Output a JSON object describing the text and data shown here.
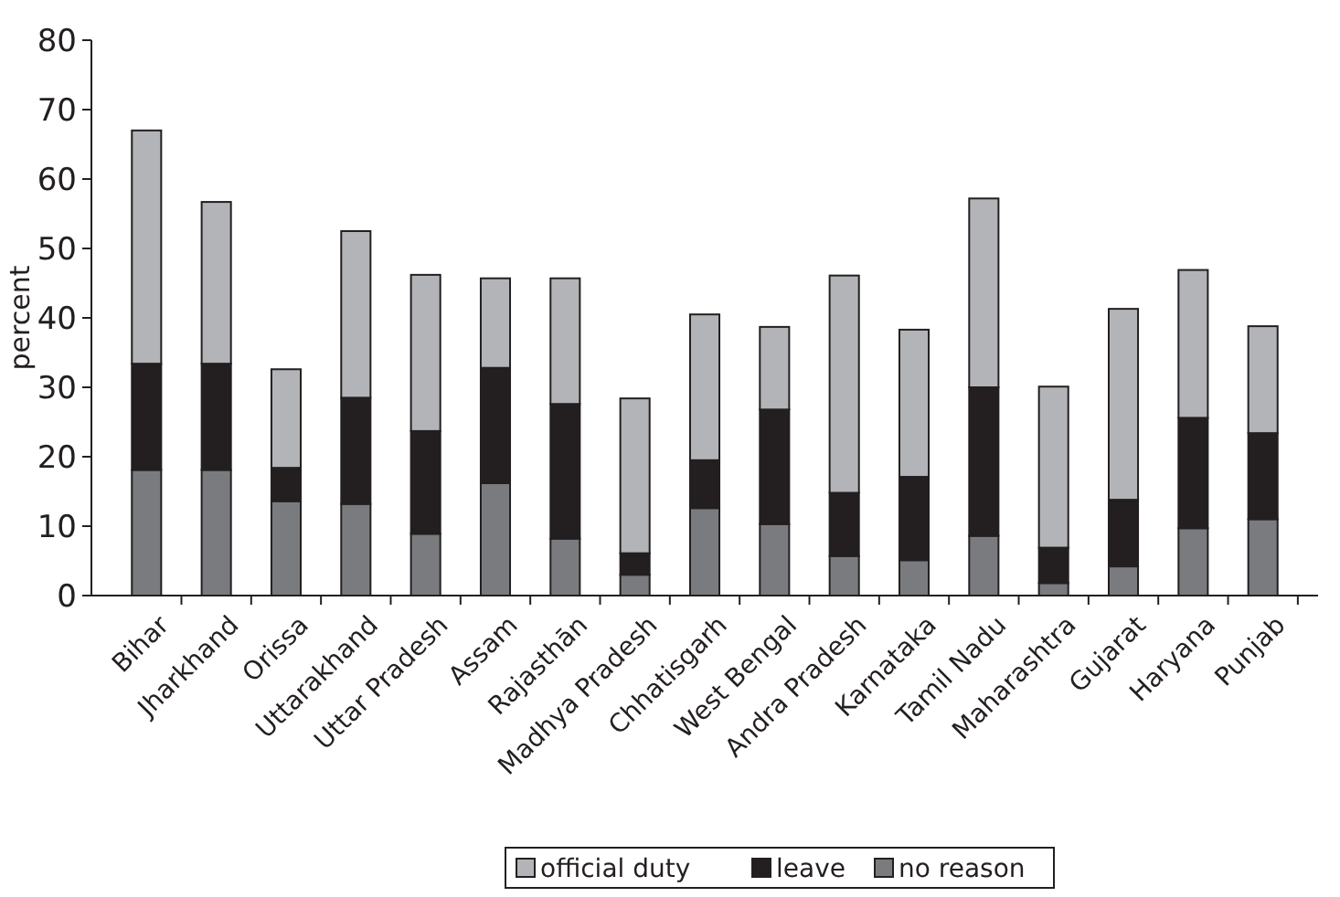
{
  "chart_data": {
    "type": "bar",
    "stacked": true,
    "ylabel": "percent",
    "categories": [
      "Bihar",
      "Jharkhand",
      "Orissa",
      "Uttarakhand",
      "Uttar Pradesh",
      "Assam",
      "Rajasthān",
      "Madhya Pradesh",
      "Chhatisgarh",
      "West Bengal",
      "Andra Pradesh",
      "Karnataka",
      "Tamil Nadu",
      "Maharashtra",
      "Gujarat",
      "Haryana",
      "Punjab"
    ],
    "series": [
      {
        "name": "no reason",
        "color": "#7a7b7f",
        "values": [
          18.1,
          18.1,
          13.6,
          13.2,
          8.9,
          16.2,
          8.2,
          3.0,
          12.6,
          10.3,
          5.7,
          5.1,
          8.6,
          1.8,
          4.2,
          9.7,
          11.0
        ]
      },
      {
        "name": "leave",
        "color": "#231f20",
        "values": [
          15.3,
          15.3,
          4.8,
          15.3,
          14.8,
          16.6,
          19.4,
          3.1,
          6.9,
          16.5,
          9.1,
          12.0,
          21.4,
          5.1,
          9.6,
          15.9,
          12.4
        ]
      },
      {
        "name": "official duty",
        "color": "#b3b4b8",
        "values": [
          33.6,
          23.3,
          14.2,
          24.0,
          22.5,
          12.9,
          18.1,
          22.3,
          21.0,
          11.9,
          31.3,
          21.2,
          27.2,
          23.2,
          27.5,
          21.3,
          15.4
        ]
      }
    ],
    "ylim": [
      0,
      80
    ],
    "yticks": [
      0,
      10,
      20,
      30,
      40,
      50,
      60,
      70,
      80
    ],
    "grid": false,
    "legend": "bottom"
  }
}
